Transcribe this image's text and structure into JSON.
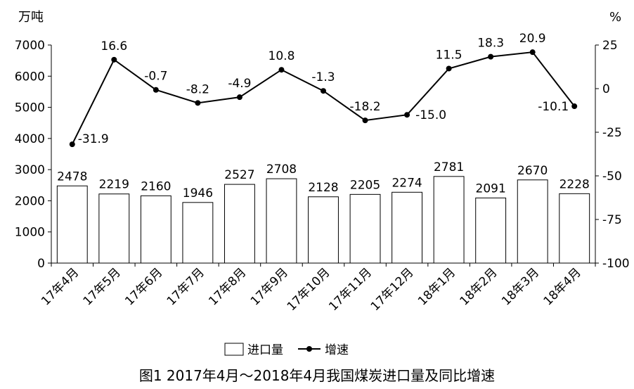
{
  "chart_data": {
    "type": "bar+line",
    "caption": "图1 2017年4月～2018年4月我国煤炭进口量及同比增速",
    "left_axis_unit": "万吨",
    "right_axis_unit": "%",
    "categories": [
      "17年4月",
      "17年5月",
      "17年6月",
      "17年7月",
      "17年8月",
      "17年9月",
      "17年10月",
      "17年11月",
      "17年12月",
      "18年1月",
      "18年2月",
      "18年3月",
      "18年4月"
    ],
    "series": [
      {
        "name": "进口量",
        "type": "bar",
        "axis": "left",
        "values": [
          2478,
          2219,
          2160,
          1946,
          2527,
          2708,
          2128,
          2205,
          2274,
          2781,
          2091,
          2670,
          2228
        ]
      },
      {
        "name": "增速",
        "type": "line",
        "axis": "right",
        "values": [
          -31.9,
          16.6,
          -0.7,
          -8.2,
          -4.9,
          10.8,
          -1.3,
          -18.2,
          -15.0,
          11.5,
          18.3,
          20.9,
          -10.1
        ]
      }
    ],
    "bar_labels": [
      "2478",
      "2219",
      "2160",
      "1946",
      "2527",
      "2708",
      "2128",
      "2205",
      "2274",
      "2781",
      "2091",
      "2670",
      "2228"
    ],
    "line_labels": [
      "-31.9",
      "16.6",
      "-0.7",
      "-8.2",
      "-4.9",
      "10.8",
      "-1.3",
      "-18.2",
      "-15.0",
      "11.5",
      "18.3",
      "20.9",
      "-10.1"
    ],
    "left_ylim": [
      0,
      7000
    ],
    "left_ticks": [
      "0",
      "1000",
      "2000",
      "3000",
      "4000",
      "5000",
      "6000",
      "7000"
    ],
    "right_ylim": [
      -100,
      25
    ],
    "right_ticks": [
      "-100",
      "-75",
      "-50",
      "-25",
      "0",
      "25"
    ],
    "legend": [
      "进口量",
      "增速"
    ],
    "legend_position": "bottom",
    "grid": false,
    "colors": {
      "bar_fill": "#ffffff",
      "bar_stroke": "#000000",
      "line": "#000000",
      "axis": "#000000"
    }
  }
}
